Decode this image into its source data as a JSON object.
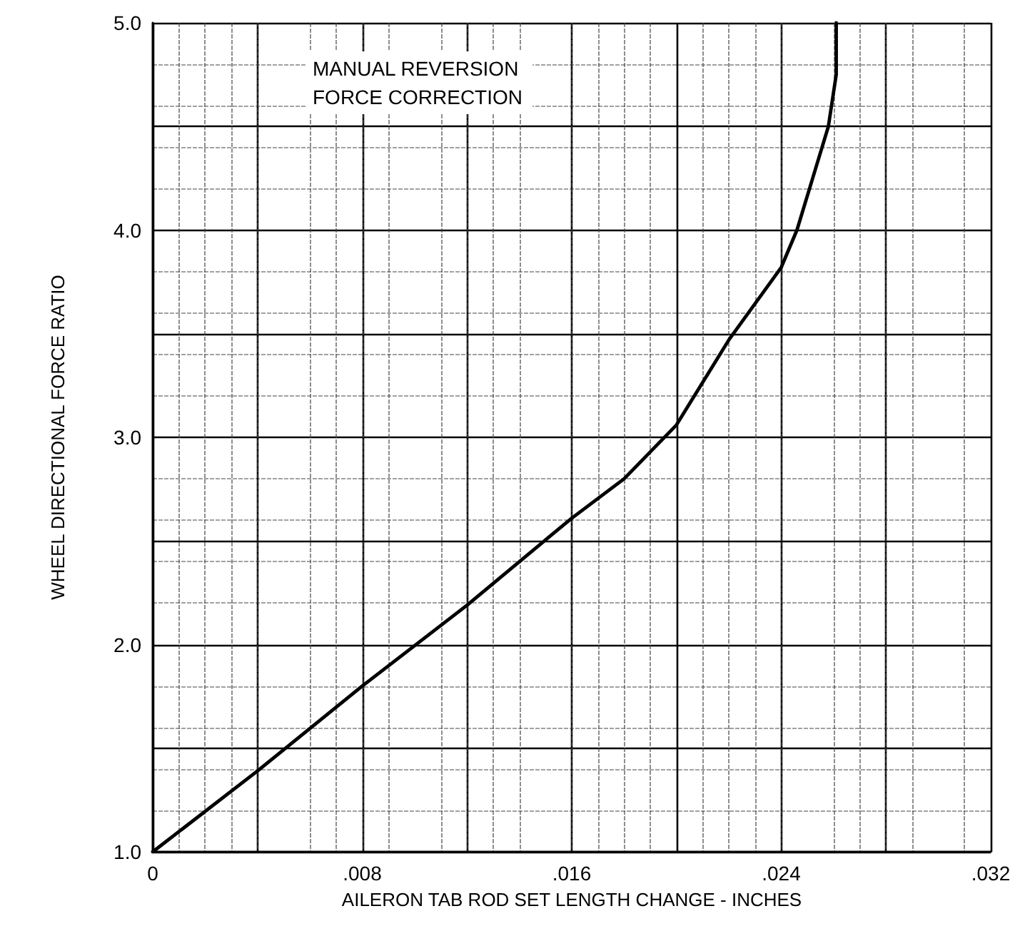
{
  "chart_data": {
    "type": "line",
    "xlabel": "AILERON TAB ROD SET LENGTH CHANGE - INCHES",
    "ylabel": "WHEEL DIRECTIONAL FORCE RATIO",
    "annotations": [
      "MANUAL REVERSION FORCE CORRECTION"
    ],
    "x": [
      0,
      0.004,
      0.008,
      0.012,
      0.016,
      0.018,
      0.02,
      0.022,
      0.024,
      0.0246,
      0.0252,
      0.0258,
      0.0261,
      0.0261
    ],
    "series": [
      {
        "color": "#000000",
        "values": [
          1.0,
          1.39,
          1.8,
          2.19,
          2.61,
          2.8,
          3.06,
          3.47,
          3.82,
          4.0,
          4.25,
          4.5,
          4.75,
          5.0
        ]
      }
    ],
    "xlim": [
      0,
      0.032
    ],
    "xticks": [
      0,
      {
        "value": 0.004,
        "label": null
      },
      {
        "value": 0.008,
        "label": ".008"
      },
      {
        "value": 0.012,
        "label": null
      },
      {
        "value": 0.016,
        "label": ".016"
      },
      {
        "value": 0.02,
        "label": null
      },
      {
        "value": 0.024,
        "label": ".024"
      },
      {
        "value": 0.028,
        "label": null
      },
      {
        "value": 0.032,
        "label": ".032"
      }
    ],
    "ylim": [
      1,
      5
    ],
    "yticks": [
      {
        "value": 1,
        "label": "1.0"
      },
      {
        "value": 1.5,
        "label": null
      },
      {
        "value": 2,
        "label": "2.0"
      },
      {
        "value": 2.5,
        "label": null
      },
      {
        "value": 3,
        "label": "3.0"
      },
      {
        "value": 3.5,
        "label": null
      },
      {
        "value": 4,
        "label": "4.0"
      },
      {
        "value": 4.5,
        "label": null
      },
      {
        "value": 5,
        "label": "5.0"
      }
    ],
    "grid": true,
    "marker": "none",
    "line_style": "solid"
  }
}
